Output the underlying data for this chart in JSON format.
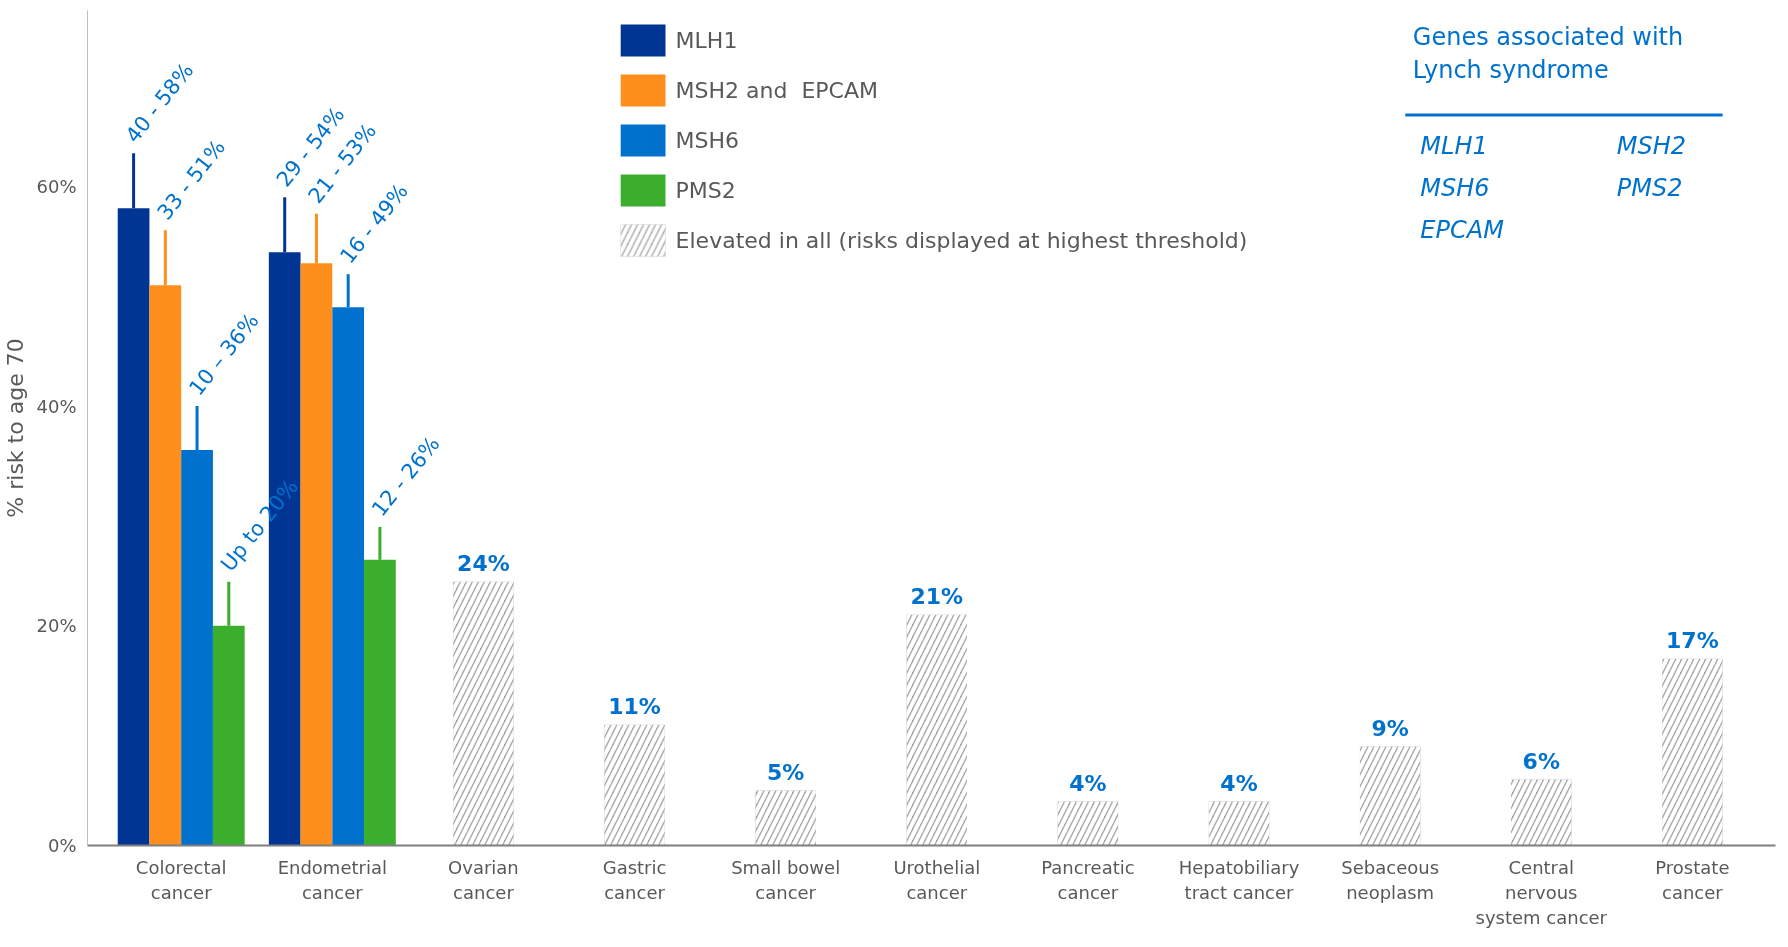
{
  "chart_data": {
    "type": "bar",
    "ylabel": "% risk to age 70",
    "categories": [
      "Colorectal cancer",
      "Endometrial cancer",
      "Ovarian cancer",
      "Gastric cancer",
      "Small bowel cancer",
      "Urothelial cancer",
      "Pancreatic cancer",
      "Hepatobiliary tract cancer",
      "Sebaceous neoplasm",
      "Central nervous system cancer",
      "Prostate cancer"
    ],
    "series": [
      {
        "name": "MLH1",
        "color": "#003594",
        "values": [
          58,
          54,
          null,
          null,
          null,
          null,
          null,
          null,
          null,
          null,
          null
        ],
        "errors": [
          [
            58,
            63
          ],
          [
            54,
            59
          ],
          null,
          null,
          null,
          null,
          null,
          null,
          null,
          null,
          null
        ]
      },
      {
        "name": "MSH2 and  EPCAM",
        "color": "#ff8f1c",
        "values": [
          51,
          53,
          null,
          null,
          null,
          null,
          null,
          null,
          null,
          null,
          null
        ],
        "errors": [
          [
            51,
            56
          ],
          [
            53,
            57.5
          ],
          null,
          null,
          null,
          null,
          null,
          null,
          null,
          null,
          null
        ]
      },
      {
        "name": "MSH6",
        "color": "#0072ce",
        "values": [
          36,
          49,
          null,
          null,
          null,
          null,
          null,
          null,
          null,
          null,
          null
        ],
        "errors": [
          [
            36,
            40
          ],
          [
            49,
            52
          ],
          null,
          null,
          null,
          null,
          null,
          null,
          null,
          null,
          null
        ]
      },
      {
        "name": "PMS2",
        "color": "#3cae2e",
        "values": [
          20,
          26,
          null,
          null,
          null,
          null,
          null,
          null,
          null,
          null,
          null
        ],
        "errors": [
          [
            20,
            24
          ],
          [
            26,
            29
          ],
          null,
          null,
          null,
          null,
          null,
          null,
          null,
          null,
          null
        ]
      },
      {
        "name": "Elevated in all (risks displayed at highest threshold)",
        "color": "#a6a6a6",
        "values": [
          null,
          null,
          24,
          11,
          5,
          21,
          4,
          4,
          9,
          6,
          17
        ],
        "value_labels": [
          null,
          null,
          "24%",
          "11%",
          "5%",
          "21%",
          "4%",
          "4%",
          "9%",
          "6%",
          "17%"
        ]
      }
    ],
    "ylim": [
      0,
      76
    ],
    "yticks": [
      {
        "value": 0,
        "label": "0%"
      },
      {
        "value": 20,
        "label": "20%"
      },
      {
        "value": 40,
        "label": "40%"
      },
      {
        "value": 60,
        "label": "60%"
      }
    ],
    "grid": false,
    "legend": "top",
    "annotations": [
      "Genes associated with Lynch syndrome",
      "MLH1",
      "MSH2",
      "MSH6",
      "PMS2",
      "EPCAM",
      "40 - 58%",
      "33 - 51%",
      "10 – 36%",
      "Up to 20%",
      "29 - 54%",
      "21 - 53%",
      "16 - 49%",
      "12 - 26%"
    ]
  }
}
